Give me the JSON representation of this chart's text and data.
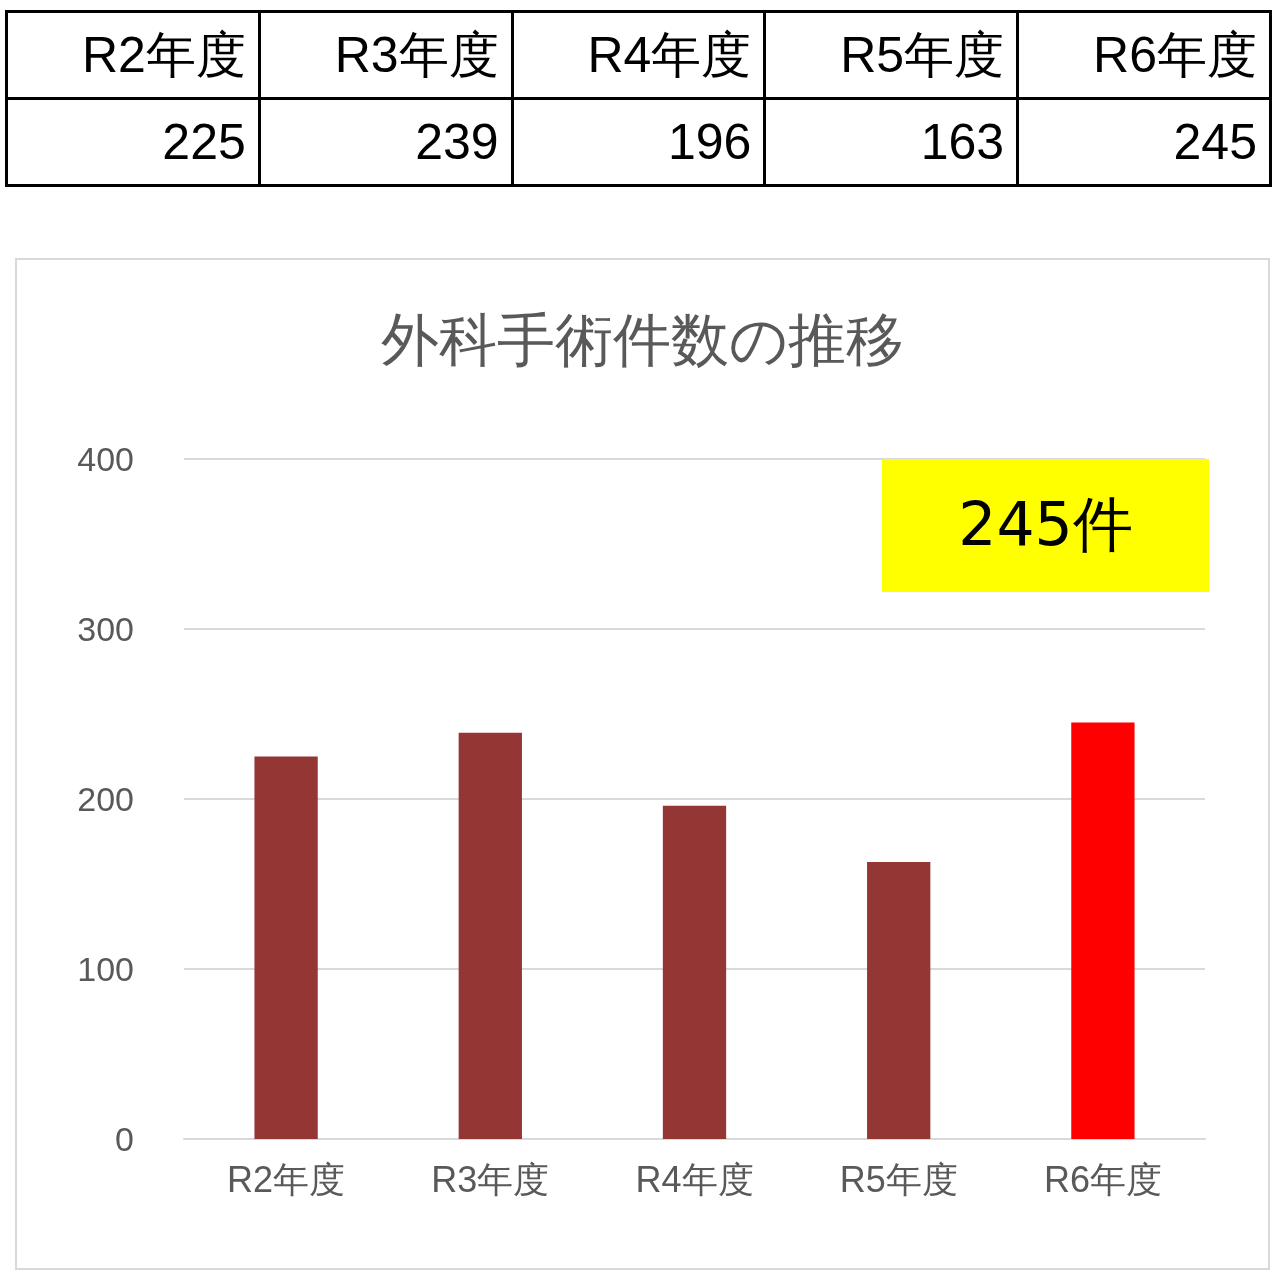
{
  "chart_data": [
    {
      "type": "other",
      "categories": [
        "R2年度",
        "R3年度",
        "R4年度",
        "R5年度",
        "R6年度"
      ],
      "values": [
        225,
        239,
        196,
        163,
        245
      ],
      "data_labels": true
    },
    {
      "type": "bar",
      "title": "外科手術件数の推移",
      "categories": [
        "R2年度",
        "R3年度",
        "R4年度",
        "R5年度",
        "R6年度"
      ],
      "values": [
        225,
        239,
        196,
        163,
        245
      ],
      "colors": [
        "#943634",
        "#943634",
        "#943634",
        "#943634",
        "#ff0000"
      ],
      "ylim": [
        0,
        400
      ],
      "yticks": [
        0,
        100,
        200,
        300,
        400
      ],
      "grid": "y",
      "annotations": [
        "245件"
      ]
    }
  ]
}
